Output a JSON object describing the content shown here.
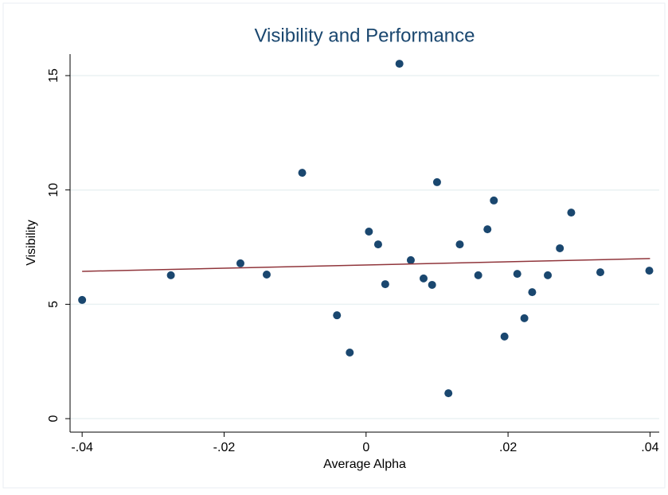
{
  "chart_data": {
    "type": "scatter",
    "title": "Visibility and Performance",
    "xlabel": "Average Alpha",
    "ylabel": "Visibility",
    "series": [
      {
        "name": "Visibility",
        "color": "#1a476f",
        "x": [
          -0.04,
          -0.0275,
          -0.0177,
          -0.014,
          -0.009,
          -0.0041,
          -0.0023,
          0.0004,
          0.0017,
          0.0027,
          0.0047,
          0.0063,
          0.0081,
          0.0093,
          0.01,
          0.0116,
          0.0132,
          0.0158,
          0.0171,
          0.018,
          0.0195,
          0.0213,
          0.0223,
          0.0234,
          0.0256,
          0.0273,
          0.0289,
          0.033,
          0.0399
        ],
        "values": [
          5.19,
          6.27,
          6.79,
          6.3,
          10.75,
          4.52,
          2.89,
          8.18,
          7.62,
          5.88,
          15.52,
          6.93,
          6.13,
          5.85,
          10.34,
          1.11,
          7.62,
          6.27,
          8.28,
          9.54,
          3.59,
          6.33,
          4.39,
          5.53,
          6.27,
          7.45,
          9.01,
          6.4,
          6.47
        ]
      }
    ],
    "fit": {
      "color": "#90353b",
      "x": [
        -0.04,
        0.04
      ],
      "values": [
        6.44,
        7.0
      ]
    },
    "xlim": [
      -0.0417,
      0.0413
    ],
    "ylim": [
      -0.59,
      15.94
    ],
    "xticks": [
      {
        "value": -0.04,
        "label": "-.04"
      },
      {
        "value": -0.02,
        "label": "-.02"
      },
      0,
      {
        "value": 0.02,
        "label": ".02"
      },
      {
        "value": 0.04,
        "label": ".04"
      }
    ],
    "yticks": [
      0,
      5,
      10,
      15
    ],
    "grid": true
  }
}
